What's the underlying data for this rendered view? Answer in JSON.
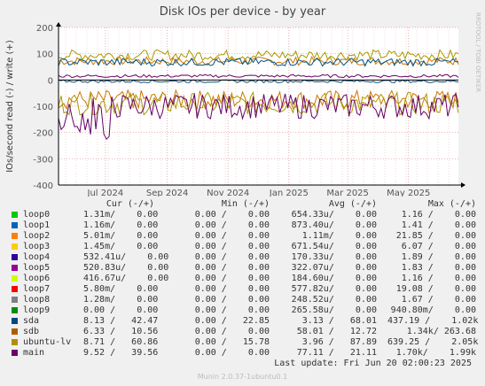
{
  "chart_data": {
    "type": "line",
    "title": "Disk IOs per device - by year",
    "ylabel": "IOs/second read (-) / write (+)",
    "ylim": [
      -400,
      200
    ],
    "yticks": [
      200,
      100,
      0,
      -100,
      -200,
      -300,
      -400
    ],
    "xlim": [
      "2024-05-15",
      "2025-06-20"
    ],
    "xticks": [
      {
        "label": "Jul 2024",
        "date": "2024-07-01"
      },
      {
        "label": "Sep 2024",
        "date": "2024-09-01"
      },
      {
        "label": "Nov 2024",
        "date": "2024-11-01"
      },
      {
        "label": "Jan 2025",
        "date": "2025-01-01"
      },
      {
        "label": "Mar 2025",
        "date": "2025-03-01"
      },
      {
        "label": "May 2025",
        "date": "2025-05-01"
      }
    ],
    "grid": true,
    "series": [
      {
        "name": "sdb",
        "color": "#cc7700",
        "write_mean": 72,
        "read_mean": -75
      },
      {
        "name": "ubuntu-lv",
        "color": "#aa9900",
        "write_mean": 95,
        "read_mean": -90
      },
      {
        "name": "main",
        "color": "#660066",
        "write_mean": 15,
        "read_mean": -100
      },
      {
        "name": "sda",
        "color": "#005588",
        "write_mean": 68,
        "read_mean": -5
      }
    ]
  },
  "side_label": "RRDTOOL / TOBI OETIKER",
  "legend": {
    "headers": {
      "cur": "Cur (-/+)",
      "min": "Min (-/+)",
      "avg": "Avg (-/+)",
      "max": "Max (-/+)"
    },
    "rows": [
      {
        "name": "loop0",
        "color": "#00cc00",
        "cur": "1.31m/    0.00",
        "min": "0.00 /    0.00",
        "avg": "654.33u/    0.00",
        "max": "1.16 /    0.00"
      },
      {
        "name": "loop1",
        "color": "#0066b3",
        "cur": "1.16m/    0.00",
        "min": "0.00 /    0.00",
        "avg": "873.40u/    0.00",
        "max": "1.41 /    0.00"
      },
      {
        "name": "loop2",
        "color": "#ff8000",
        "cur": "5.01m/    0.00",
        "min": "0.00 /    0.00",
        "avg": "1.11m/    0.00",
        "max": "21.85 /    0.00"
      },
      {
        "name": "loop3",
        "color": "#ffcc00",
        "cur": "1.45m/    0.00",
        "min": "0.00 /    0.00",
        "avg": "671.54u/    0.00",
        "max": "6.07 /    0.00"
      },
      {
        "name": "loop4",
        "color": "#330099",
        "cur": "532.41u/    0.00",
        "min": "0.00 /    0.00",
        "avg": "170.33u/    0.00",
        "max": "1.89 /    0.00"
      },
      {
        "name": "loop5",
        "color": "#990099",
        "cur": "520.83u/    0.00",
        "min": "0.00 /    0.00",
        "avg": "322.07u/    0.00",
        "max": "1.83 /    0.00"
      },
      {
        "name": "loop6",
        "color": "#ccff00",
        "cur": "416.67u/    0.00",
        "min": "0.00 /    0.00",
        "avg": "184.60u/    0.00",
        "max": "1.16 /    0.00"
      },
      {
        "name": "loop7",
        "color": "#ff0000",
        "cur": "5.80m/    0.00",
        "min": "0.00 /    0.00",
        "avg": "577.82u/    0.00",
        "max": "19.08 /    0.00"
      },
      {
        "name": "loop8",
        "color": "#808080",
        "cur": "1.28m/    0.00",
        "min": "0.00 /    0.00",
        "avg": "248.52u/    0.00",
        "max": "1.67 /    0.00"
      },
      {
        "name": "loop9",
        "color": "#008f00",
        "cur": "0.00 /    0.00",
        "min": "0.00 /    0.00",
        "avg": "265.58u/    0.00",
        "max": "940.80m/    0.00"
      },
      {
        "name": "sda",
        "color": "#00487d",
        "cur": "8.13 /   42.47",
        "min": "0.00 /   22.85",
        "avg": "3.13 /   68.01",
        "max": "437.19 /    1.02k"
      },
      {
        "name": "sdb",
        "color": "#b35a00",
        "cur": "6.33 /   10.56",
        "min": "0.00 /    0.00",
        "avg": "58.01 /   12.72",
        "max": "1.34k/ 263.68"
      },
      {
        "name": "ubuntu-lv",
        "color": "#b38f00",
        "cur": "8.71 /   60.86",
        "min": "0.00 /   15.78",
        "avg": "3.96 /   87.89",
        "max": "639.25 /    2.05k"
      },
      {
        "name": "main",
        "color": "#6b006b",
        "cur": "9.52 /   39.56",
        "min": "0.00 /    0.00",
        "avg": "77.11 /   21.11",
        "max": "1.70k/    1.99k"
      }
    ]
  },
  "last_update": "Last update: Fri Jun 20 02:00:23 2025",
  "footer": "Munin 2.0.37-1ubuntu0.1"
}
